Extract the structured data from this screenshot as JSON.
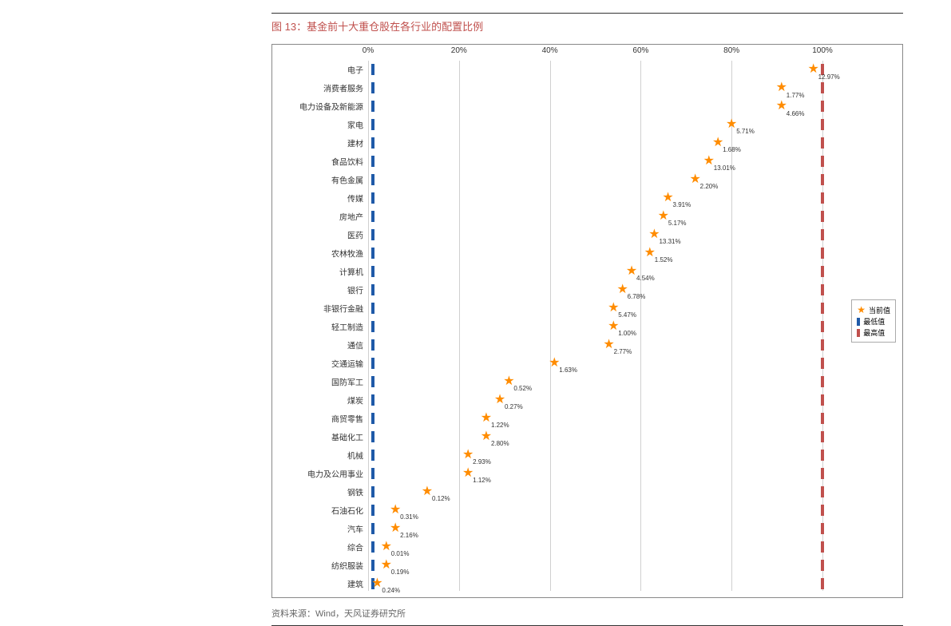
{
  "title": "图 13：基金前十大重仓股在各行业的配置比例",
  "source": "资料来源：Wind，天风证券研究所",
  "chart": {
    "type": "dot-range-horizontal",
    "xlim": [
      0,
      100
    ],
    "xticks": [
      0,
      20,
      40,
      60,
      80,
      100
    ],
    "xtick_labels": [
      "0%",
      "20%",
      "40%",
      "60%",
      "80%",
      "100%"
    ],
    "background_color": "#ffffff",
    "grid_color": "#d0d0d0",
    "border_color": "#888888",
    "label_fontsize": 10,
    "tick_fontsize": 10,
    "value_fontsize": 8,
    "star_color": "#ff8c00",
    "min_color": "#1f5aa8",
    "max_color": "#c0504d",
    "mark_width": 4,
    "mark_height": 14,
    "legend": {
      "items": [
        {
          "symbol": "star",
          "label": "当前值"
        },
        {
          "symbol": "min",
          "label": "最低值"
        },
        {
          "symbol": "max",
          "label": "最高值"
        }
      ]
    },
    "categories": [
      {
        "name": "电子",
        "current": 98,
        "min": 1,
        "max": 100,
        "value_label": "12.97%"
      },
      {
        "name": "消费者服务",
        "current": 91,
        "min": 1,
        "max": 100,
        "value_label": "1.77%"
      },
      {
        "name": "电力设备及新能源",
        "current": 91,
        "min": 1,
        "max": 100,
        "value_label": "4.66%"
      },
      {
        "name": "家电",
        "current": 80,
        "min": 1,
        "max": 100,
        "value_label": "5.71%"
      },
      {
        "name": "建材",
        "current": 77,
        "min": 1,
        "max": 100,
        "value_label": "1.68%"
      },
      {
        "name": "食品饮料",
        "current": 75,
        "min": 1,
        "max": 100,
        "value_label": "13.01%"
      },
      {
        "name": "有色金属",
        "current": 72,
        "min": 1,
        "max": 100,
        "value_label": "2.20%"
      },
      {
        "name": "传媒",
        "current": 66,
        "min": 1,
        "max": 100,
        "value_label": "3.91%"
      },
      {
        "name": "房地产",
        "current": 65,
        "min": 1,
        "max": 100,
        "value_label": "5.17%"
      },
      {
        "name": "医药",
        "current": 63,
        "min": 1,
        "max": 100,
        "value_label": "13.31%"
      },
      {
        "name": "农林牧渔",
        "current": 62,
        "min": 1,
        "max": 100,
        "value_label": "1.52%"
      },
      {
        "name": "计算机",
        "current": 58,
        "min": 1,
        "max": 100,
        "value_label": "4.54%"
      },
      {
        "name": "银行",
        "current": 56,
        "min": 1,
        "max": 100,
        "value_label": "6.78%"
      },
      {
        "name": "非银行金融",
        "current": 54,
        "min": 1,
        "max": 100,
        "value_label": "5.47%"
      },
      {
        "name": "轻工制造",
        "current": 54,
        "min": 1,
        "max": 100,
        "value_label": "1.00%"
      },
      {
        "name": "通信",
        "current": 53,
        "min": 1,
        "max": 100,
        "value_label": "2.77%"
      },
      {
        "name": "交通运输",
        "current": 41,
        "min": 1,
        "max": 100,
        "value_label": "1.63%"
      },
      {
        "name": "国防军工",
        "current": 31,
        "min": 1,
        "max": 100,
        "value_label": "0.52%"
      },
      {
        "name": "煤炭",
        "current": 29,
        "min": 1,
        "max": 100,
        "value_label": "0.27%"
      },
      {
        "name": "商贸零售",
        "current": 26,
        "min": 1,
        "max": 100,
        "value_label": "1.22%"
      },
      {
        "name": "基础化工",
        "current": 26,
        "min": 1,
        "max": 100,
        "value_label": "2.80%"
      },
      {
        "name": "机械",
        "current": 22,
        "min": 1,
        "max": 100,
        "value_label": "2.93%"
      },
      {
        "name": "电力及公用事业",
        "current": 22,
        "min": 1,
        "max": 100,
        "value_label": "1.12%"
      },
      {
        "name": "钢铁",
        "current": 13,
        "min": 1,
        "max": 100,
        "value_label": "0.12%"
      },
      {
        "name": "石油石化",
        "current": 6,
        "min": 1,
        "max": 100,
        "value_label": "0.31%"
      },
      {
        "name": "汽车",
        "current": 6,
        "min": 1,
        "max": 100,
        "value_label": "2.16%"
      },
      {
        "name": "综合",
        "current": 4,
        "min": 1,
        "max": 100,
        "value_label": "0.01%"
      },
      {
        "name": "纺织服装",
        "current": 4,
        "min": 1,
        "max": 100,
        "value_label": "0.19%"
      },
      {
        "name": "建筑",
        "current": 2,
        "min": 1,
        "max": 100,
        "value_label": "0.24%"
      }
    ]
  }
}
